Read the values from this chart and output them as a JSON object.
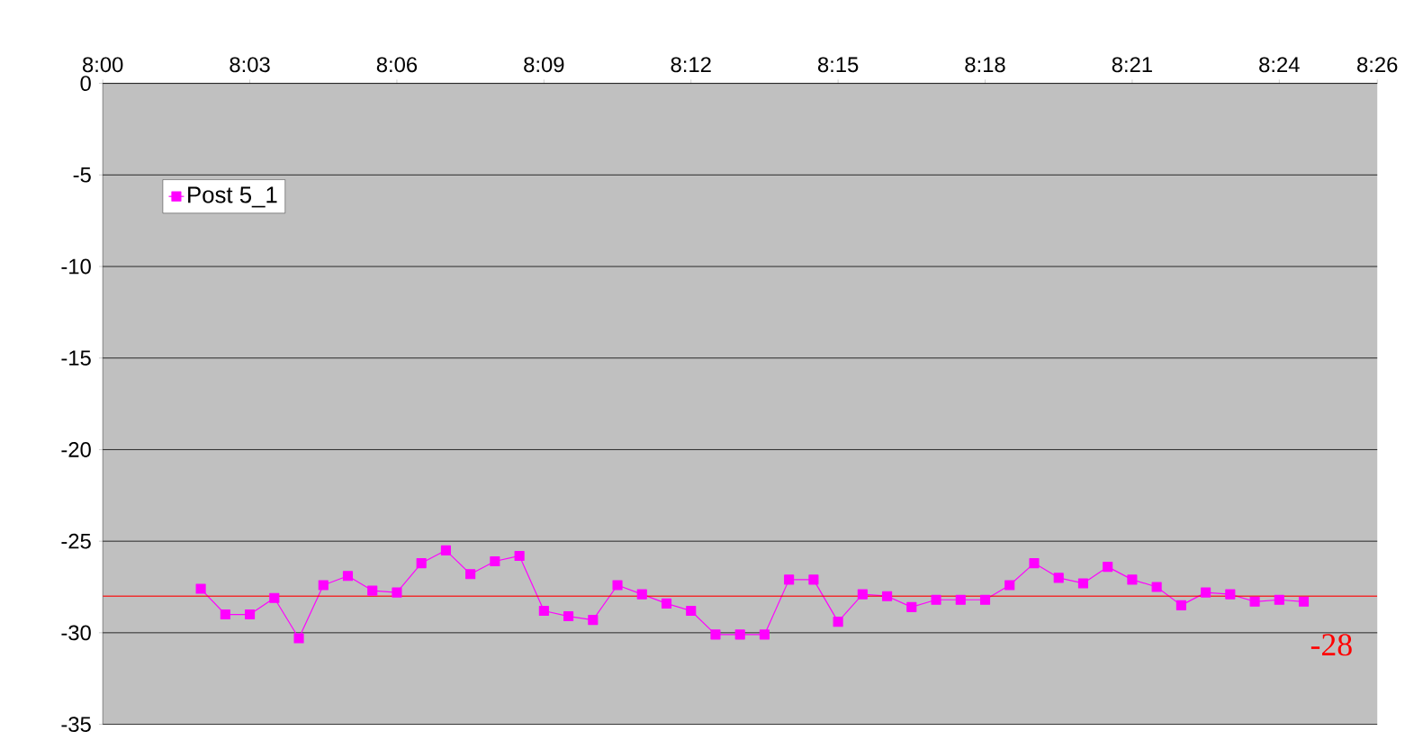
{
  "chart_data": {
    "type": "line",
    "xlim": [
      8,
      8.43333
    ],
    "ylim": [
      -35,
      0
    ],
    "xticks": [
      {
        "value": 8,
        "label": "8:00"
      },
      {
        "value": 8.05,
        "label": "8:03"
      },
      {
        "value": 8.1,
        "label": "8:06"
      },
      {
        "value": 8.15,
        "label": "8:09"
      },
      {
        "value": 8.2,
        "label": "8:12"
      },
      {
        "value": 8.25,
        "label": "8:15"
      },
      {
        "value": 8.3,
        "label": "8:18"
      },
      {
        "value": 8.35,
        "label": "8:21"
      },
      {
        "value": 8.4,
        "label": "8:24"
      },
      {
        "value": 8.43333,
        "label": "8:26"
      }
    ],
    "yticks": [
      0,
      -5,
      -10,
      -15,
      -20,
      -25,
      -30,
      -35
    ],
    "grid": "y",
    "legend": "top left",
    "marker": "square",
    "line_style": "solid",
    "x": [
      8.03333,
      8.04167,
      8.05,
      8.05833,
      8.06667,
      8.075,
      8.08333,
      8.09167,
      8.1,
      8.10833,
      8.11667,
      8.125,
      8.13333,
      8.14167,
      8.15,
      8.15833,
      8.16667,
      8.175,
      8.18333,
      8.19167,
      8.2,
      8.20833,
      8.21667,
      8.225,
      8.23333,
      8.24167,
      8.25,
      8.25833,
      8.26667,
      8.275,
      8.28333,
      8.29167,
      8.3,
      8.30833,
      8.31667,
      8.325,
      8.33333,
      8.34167,
      8.35,
      8.35833,
      8.36667,
      8.375,
      8.38333,
      8.39167,
      8.4,
      8.40833
    ],
    "series": [
      {
        "name": "Post 5_1",
        "color": "#ff00ff",
        "values": [
          -27.6,
          -29,
          -29,
          -28.1,
          -30.3,
          -27.4,
          -26.9,
          -27.7,
          -27.8,
          -26.2,
          -25.5,
          -26.8,
          -26.1,
          -25.8,
          -28.8,
          -29.1,
          -29.3,
          -27.4,
          -27.9,
          -28.4,
          -28.8,
          -30.1,
          -30.1,
          -30.1,
          -27.1,
          -27.1,
          -29.4,
          -27.9,
          -28,
          -28.6,
          -28.2,
          -28.2,
          -28.2,
          -27.4,
          -26.2,
          -27,
          -27.3,
          -26.4,
          -27.1,
          -27.5,
          -28.5,
          -27.8,
          -27.9,
          -28.3,
          -28.2,
          -28.3
        ]
      }
    ],
    "ref_lines": [
      {
        "axis": "y",
        "value": -28,
        "label": "-28",
        "color": "#ff0000"
      }
    ]
  }
}
